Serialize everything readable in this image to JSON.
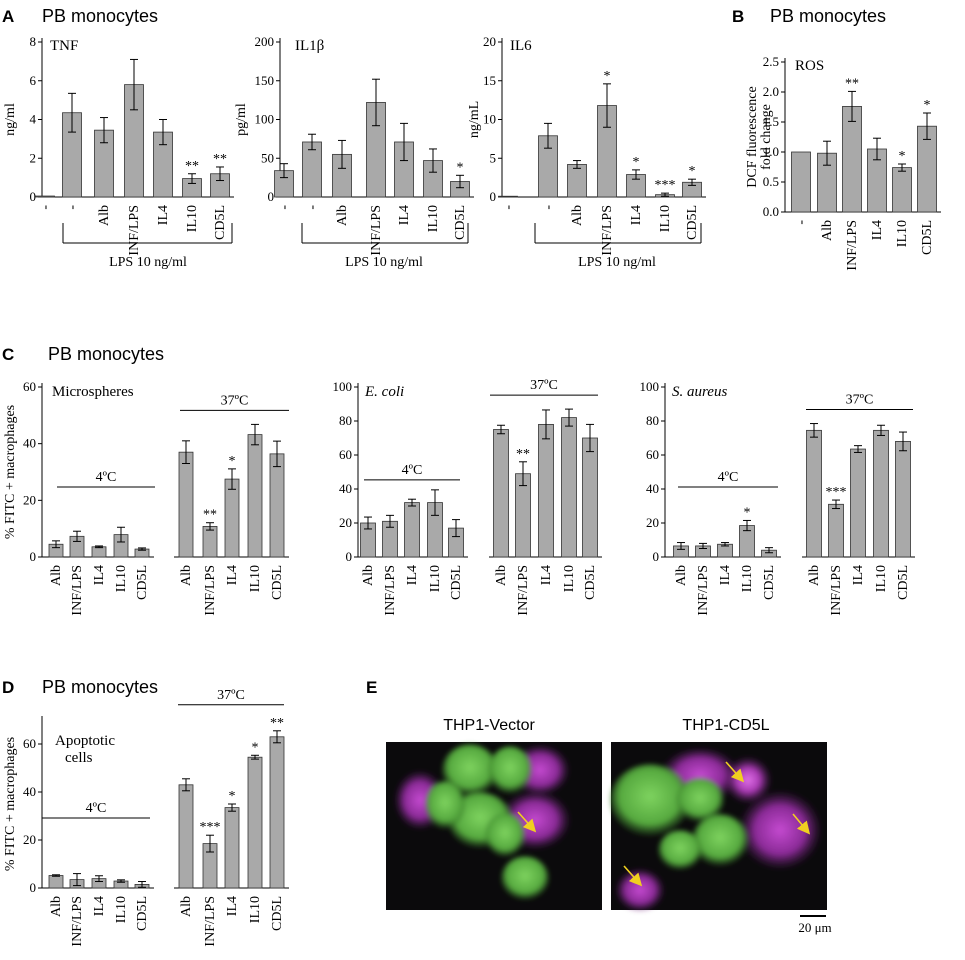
{
  "panels": {
    "A": {
      "letter": "A",
      "title": "PB monocytes"
    },
    "B": {
      "letter": "B",
      "title": "PB monocytes"
    },
    "C": {
      "letter": "C",
      "title": "PB monocytes"
    },
    "D": {
      "letter": "D",
      "title": "PB monocytes"
    },
    "E": {
      "letter": "E"
    }
  },
  "micrographs": {
    "left_label": "THP1-Vector",
    "right_label": "THP1-CD5L",
    "scale_bar": "20 μm"
  },
  "chart_data": [
    {
      "id": "A-TNF",
      "type": "bar",
      "title": "TNF",
      "ylabel": "ng/ml",
      "ylim": [
        0,
        8
      ],
      "yticks": [
        0,
        2,
        4,
        6,
        8
      ],
      "categories": [
        "-",
        "-",
        "Alb",
        "INF/LPS",
        "IL4",
        "IL10",
        "CD5L"
      ],
      "values": [
        0.05,
        4.35,
        3.45,
        5.8,
        3.35,
        0.95,
        1.2
      ],
      "errors": [
        0,
        1.0,
        0.65,
        1.3,
        0.65,
        0.25,
        0.35
      ],
      "significance": [
        "",
        "",
        "",
        "",
        "",
        "**",
        "**"
      ],
      "group_label": "LPS 10 ng/ml"
    },
    {
      "id": "A-IL1b",
      "type": "bar",
      "title": "IL1β",
      "ylabel": "pg/ml",
      "ylim": [
        0,
        200
      ],
      "yticks": [
        0,
        50,
        100,
        150,
        200
      ],
      "categories": [
        "-",
        "-",
        "Alb",
        "INF/LPS",
        "IL4",
        "IL10",
        "CD5L"
      ],
      "values": [
        34,
        71,
        55,
        122,
        71,
        47,
        20
      ],
      "errors": [
        9,
        10,
        18,
        30,
        24,
        15,
        8
      ],
      "significance": [
        "",
        "",
        "",
        "",
        "",
        "",
        "*"
      ],
      "group_label": "LPS 10 ng/ml"
    },
    {
      "id": "A-IL6",
      "type": "bar",
      "title": "IL6",
      "ylabel": "ng/mL",
      "ylim": [
        0,
        20
      ],
      "yticks": [
        0,
        5,
        10,
        15,
        20
      ],
      "categories": [
        "-",
        "-",
        "Alb",
        "INF/LPS",
        "IL4",
        "IL10",
        "CD5L"
      ],
      "values": [
        0.1,
        7.9,
        4.2,
        11.8,
        2.9,
        0.3,
        1.9
      ],
      "errors": [
        0,
        1.6,
        0.5,
        2.8,
        0.6,
        0.2,
        0.4
      ],
      "significance": [
        "",
        "",
        "",
        "*",
        "*",
        "***",
        "*"
      ],
      "group_label": "LPS 10 ng/ml"
    },
    {
      "id": "B-ROS",
      "type": "bar",
      "title": "ROS",
      "ylabel": "DCF fluorescence fold change",
      "ylim": [
        0,
        2.5
      ],
      "yticks": [
        0.0,
        0.5,
        1.0,
        1.5,
        2.0,
        2.5
      ],
      "categories": [
        "-",
        "Alb",
        "INF/LPS",
        "IL4",
        "IL10",
        "CD5L"
      ],
      "values": [
        1.0,
        0.98,
        1.76,
        1.05,
        0.74,
        1.43
      ],
      "errors": [
        0,
        0.2,
        0.25,
        0.18,
        0.06,
        0.22
      ],
      "significance": [
        "",
        "",
        "**",
        "",
        "*",
        "*"
      ]
    },
    {
      "id": "C-Microspheres",
      "type": "bar",
      "title": "Microspheres",
      "ylabel": "% FITC + macrophages",
      "ylim": [
        0,
        60
      ],
      "yticks": [
        0,
        20,
        40,
        60
      ],
      "groups": [
        "4ºC",
        "37ºC"
      ],
      "categories": [
        "Alb",
        "INF/LPS",
        "IL4",
        "IL10",
        "CD5L"
      ],
      "values_4C": [
        4.5,
        7.3,
        3.6,
        7.9,
        2.8
      ],
      "errors_4C": [
        1.2,
        1.8,
        0.3,
        2.6,
        0.4
      ],
      "sig_4C": [
        "",
        "",
        "",
        "",
        ""
      ],
      "values_37C": [
        37,
        10.8,
        27.5,
        43.2,
        36.4
      ],
      "errors_37C": [
        4,
        1.3,
        3.6,
        3.6,
        4.5
      ],
      "sig_37C": [
        "",
        "**",
        "*",
        "",
        ""
      ]
    },
    {
      "id": "C-Ecoli",
      "type": "bar",
      "title": "E. coli",
      "ylim": [
        0,
        100
      ],
      "yticks": [
        0,
        20,
        40,
        60,
        80,
        100
      ],
      "groups": [
        "4ºC",
        "37ºC"
      ],
      "categories": [
        "Alb",
        "INF/LPS",
        "IL4",
        "IL10",
        "CD5L"
      ],
      "values_4C": [
        20,
        21,
        32,
        32,
        17
      ],
      "errors_4C": [
        3.5,
        3.5,
        2,
        7.5,
        5
      ],
      "sig_4C": [
        "",
        "",
        "",
        "",
        ""
      ],
      "values_37C": [
        75,
        49,
        78,
        82,
        70
      ],
      "errors_37C": [
        2.5,
        7,
        8.5,
        5,
        8
      ],
      "sig_37C": [
        "",
        "**",
        "",
        "",
        ""
      ]
    },
    {
      "id": "C-Saureus",
      "type": "bar",
      "title": "S. aureus",
      "ylim": [
        0,
        100
      ],
      "yticks": [
        0,
        20,
        40,
        60,
        80,
        100
      ],
      "groups": [
        "4ºC",
        "37ºC"
      ],
      "categories": [
        "Alb",
        "INF/LPS",
        "IL4",
        "IL10",
        "CD5L"
      ],
      "values_4C": [
        6.5,
        6.5,
        7.5,
        18.5,
        4
      ],
      "errors_4C": [
        2,
        1.5,
        1,
        3,
        1.5
      ],
      "sig_4C": [
        "",
        "",
        "",
        "*",
        ""
      ],
      "values_37C": [
        74.5,
        31,
        63.5,
        74.5,
        68
      ],
      "errors_37C": [
        4,
        2.5,
        2,
        3,
        5.5
      ],
      "sig_37C": [
        "",
        "***",
        "",
        "",
        ""
      ]
    },
    {
      "id": "D-Apoptotic",
      "type": "bar",
      "title": "Apoptotic cells",
      "ylabel": "% FITC + macrophages",
      "ylim": [
        0,
        70
      ],
      "yticks": [
        0,
        20,
        40,
        60
      ],
      "groups": [
        "4ºC",
        "37ºC"
      ],
      "categories": [
        "Alb",
        "INF/LPS",
        "IL4",
        "IL10",
        "CD5L"
      ],
      "values_4C": [
        5.2,
        3.5,
        3.9,
        2.9,
        1.5
      ],
      "errors_4C": [
        0.3,
        2.5,
        1.2,
        0.5,
        1.2
      ],
      "sig_4C": [
        "",
        "",
        "",
        "",
        ""
      ],
      "values_37C": [
        43,
        18.5,
        33.5,
        54.5,
        63
      ],
      "errors_37C": [
        2.5,
        3.5,
        1.5,
        0.8,
        2.5
      ],
      "sig_37C": [
        "",
        "***",
        "*",
        "*",
        "**"
      ]
    }
  ]
}
